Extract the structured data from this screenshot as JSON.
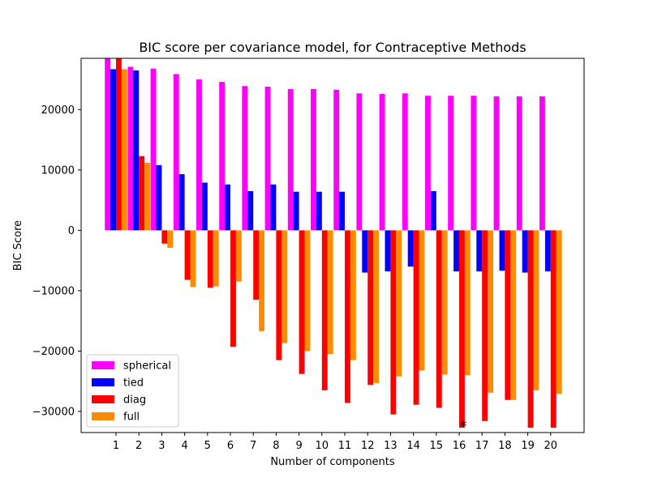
{
  "chart_data": {
    "type": "bar",
    "title": "BIC score per covariance model, for Contraceptive Methods",
    "xlabel": "Number of components",
    "ylabel": "BIC Score",
    "categories": [
      "1",
      "2",
      "3",
      "4",
      "5",
      "6",
      "7",
      "8",
      "9",
      "10",
      "11",
      "12",
      "13",
      "14",
      "15",
      "16",
      "17",
      "18",
      "19",
      "20"
    ],
    "ylim": [
      -33500,
      28500
    ],
    "yticks": [
      -30000,
      -20000,
      -10000,
      0,
      10000,
      20000
    ],
    "ytick_labels": [
      "−30000",
      "−20000",
      "−10000",
      "0",
      "10000",
      "20000"
    ],
    "legend_position": "lower-left",
    "grid": false,
    "series": [
      {
        "name": "spherical",
        "color": "#ff00ff",
        "values": [
          28500,
          27100,
          26800,
          25900,
          25000,
          24600,
          23900,
          23800,
          23400,
          23400,
          23300,
          22700,
          22600,
          22700,
          22300,
          22300,
          22300,
          22200,
          22200,
          22200
        ]
      },
      {
        "name": "tied",
        "color": "#0000ff",
        "values": [
          26700,
          26500,
          10800,
          9300,
          7900,
          7600,
          6500,
          7600,
          6400,
          6400,
          6400,
          -7000,
          -6800,
          -6000,
          6500,
          -6800,
          -6800,
          -6700,
          -7000,
          -6800
        ]
      },
      {
        "name": "diag",
        "color": "#ff0000",
        "values": [
          28500,
          12300,
          -2200,
          -8200,
          -9500,
          -19300,
          -11500,
          -21500,
          -23800,
          -26500,
          -28600,
          -25600,
          -30500,
          -28900,
          -29400,
          -32700,
          -31600,
          -28100,
          -32700,
          -32700
        ]
      },
      {
        "name": "full",
        "color": "#ff8c00",
        "values": [
          26700,
          11200,
          -2900,
          -9400,
          -9300,
          -8500,
          -16700,
          -18700,
          -20000,
          -20500,
          -21500,
          -25300,
          -24200,
          -23200,
          -23900,
          -24000,
          -26900,
          -28100,
          -26500,
          -27100
        ]
      }
    ],
    "annotation": {
      "text": "*",
      "category": "16"
    }
  }
}
